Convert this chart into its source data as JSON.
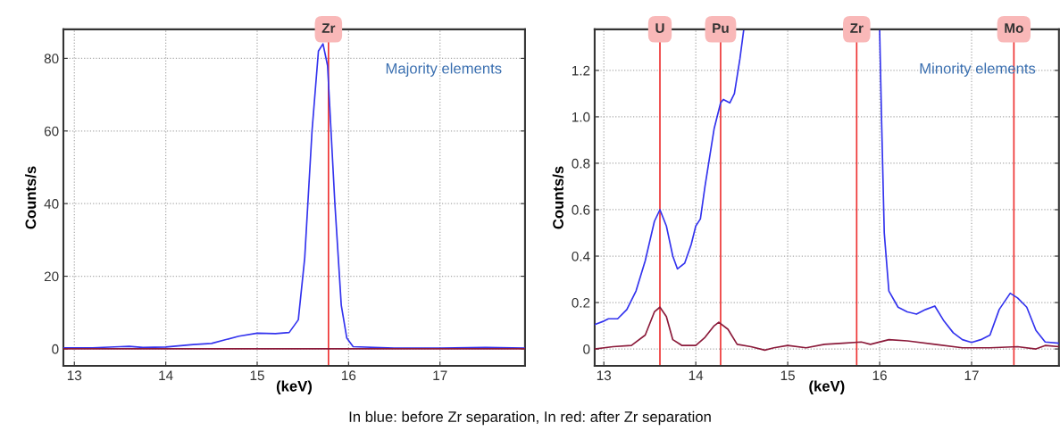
{
  "chart_data": [
    {
      "type": "line",
      "xlabel": "(keV)",
      "ylabel": "Counts/s",
      "xlim": [
        12.88,
        17.93
      ],
      "ylim": [
        -4.7,
        88
      ],
      "xticks": [
        13,
        14,
        15,
        16,
        17
      ],
      "yticks": [
        0,
        20,
        40,
        60,
        80
      ],
      "grid": true,
      "line_style": "solid",
      "annotations": [
        "Majority elements"
      ],
      "ref_lines": [
        {
          "axis": "x",
          "value": 15.78,
          "label": "Zr",
          "color": "#ee3333"
        }
      ],
      "series": [
        {
          "color": "#3333ee",
          "x": [
            12.88,
            13.2,
            13.5,
            13.6,
            13.75,
            14.0,
            14.3,
            14.5,
            14.65,
            14.8,
            15.0,
            15.2,
            15.35,
            15.45,
            15.52,
            15.6,
            15.67,
            15.72,
            15.77,
            15.85,
            15.92,
            15.98,
            16.05,
            16.5,
            17.0,
            17.5,
            17.93
          ],
          "values": [
            0.3,
            0.3,
            0.6,
            0.7,
            0.4,
            0.5,
            1.2,
            1.5,
            2.5,
            3.5,
            4.3,
            4.2,
            4.5,
            8,
            25,
            60,
            82,
            84,
            78,
            40,
            12,
            3,
            0.6,
            0.2,
            0.2,
            0.4,
            0.2
          ]
        },
        {
          "color": "#8b1a3a",
          "x": [
            12.88,
            14.0,
            15.0,
            16.0,
            17.0,
            17.93
          ],
          "values": [
            0,
            0,
            0,
            0,
            0,
            0
          ]
        }
      ]
    },
    {
      "type": "line",
      "xlabel": "(keV)",
      "ylabel": "Counts/s",
      "xlim": [
        12.9,
        17.95
      ],
      "ylim": [
        -0.073,
        1.377
      ],
      "xticks": [
        13,
        14,
        15,
        16,
        17
      ],
      "yticks": [
        0,
        0.2,
        0.4,
        0.6,
        0.8,
        {
          "value": 1,
          "label": "1.0"
        },
        1.2
      ],
      "grid": true,
      "line_style": "solid",
      "annotations": [
        "Minority elements",
        "In blue: before Zr separation, In red: after Zr separation"
      ],
      "ref_lines": [
        {
          "axis": "x",
          "value": 13.61,
          "label": "U",
          "color": "#ee3333"
        },
        {
          "axis": "x",
          "value": 14.27,
          "label": "Pu",
          "color": "#ee3333"
        },
        {
          "axis": "x",
          "value": 15.75,
          "label": "Zr",
          "color": "#ee3333"
        },
        {
          "axis": "x",
          "value": 17.46,
          "label": "Mo",
          "color": "#ee3333"
        }
      ],
      "series": [
        {
          "color": "#3333ee",
          "x": [
            12.9,
            13.0,
            13.05,
            13.15,
            13.25,
            13.35,
            13.45,
            13.55,
            13.61,
            13.68,
            13.75,
            13.8,
            13.88,
            13.95,
            14.0,
            14.05,
            14.1,
            14.2,
            14.27,
            14.3,
            14.37,
            14.42,
            14.48,
            14.52,
            15.2,
            16.0,
            16.02,
            16.05,
            16.1,
            16.2,
            16.3,
            16.4,
            16.5,
            16.6,
            16.7,
            16.8,
            16.9,
            17.0,
            17.1,
            17.2,
            17.3,
            17.42,
            17.5,
            17.6,
            17.7,
            17.8,
            17.95
          ],
          "values": [
            0.105,
            0.12,
            0.13,
            0.13,
            0.17,
            0.25,
            0.38,
            0.55,
            0.6,
            0.53,
            0.4,
            0.345,
            0.37,
            0.45,
            0.53,
            0.56,
            0.7,
            0.95,
            1.06,
            1.075,
            1.06,
            1.1,
            1.25,
            1.37,
            null,
            1.37,
            1.0,
            0.5,
            0.25,
            0.18,
            0.16,
            0.15,
            0.17,
            0.185,
            0.12,
            0.07,
            0.04,
            0.028,
            0.04,
            0.06,
            0.17,
            0.24,
            0.22,
            0.18,
            0.08,
            0.03,
            0.025
          ]
        },
        {
          "color": "#8b1a3a",
          "x": [
            12.9,
            13.1,
            13.3,
            13.45,
            13.55,
            13.61,
            13.68,
            13.75,
            13.85,
            14.0,
            14.1,
            14.2,
            14.25,
            14.35,
            14.45,
            14.6,
            14.75,
            14.85,
            15.0,
            15.2,
            15.4,
            15.6,
            15.8,
            15.9,
            16.1,
            16.3,
            16.6,
            16.9,
            17.2,
            17.5,
            17.7,
            17.8,
            17.95
          ],
          "values": [
            0.0,
            0.01,
            0.015,
            0.06,
            0.16,
            0.18,
            0.14,
            0.04,
            0.015,
            0.015,
            0.05,
            0.1,
            0.115,
            0.085,
            0.02,
            0.01,
            -0.005,
            0.005,
            0.015,
            0.005,
            0.02,
            0.025,
            0.03,
            0.02,
            0.04,
            0.035,
            0.02,
            0.005,
            0.005,
            0.01,
            0.0,
            0.015,
            0.01
          ]
        }
      ]
    }
  ]
}
